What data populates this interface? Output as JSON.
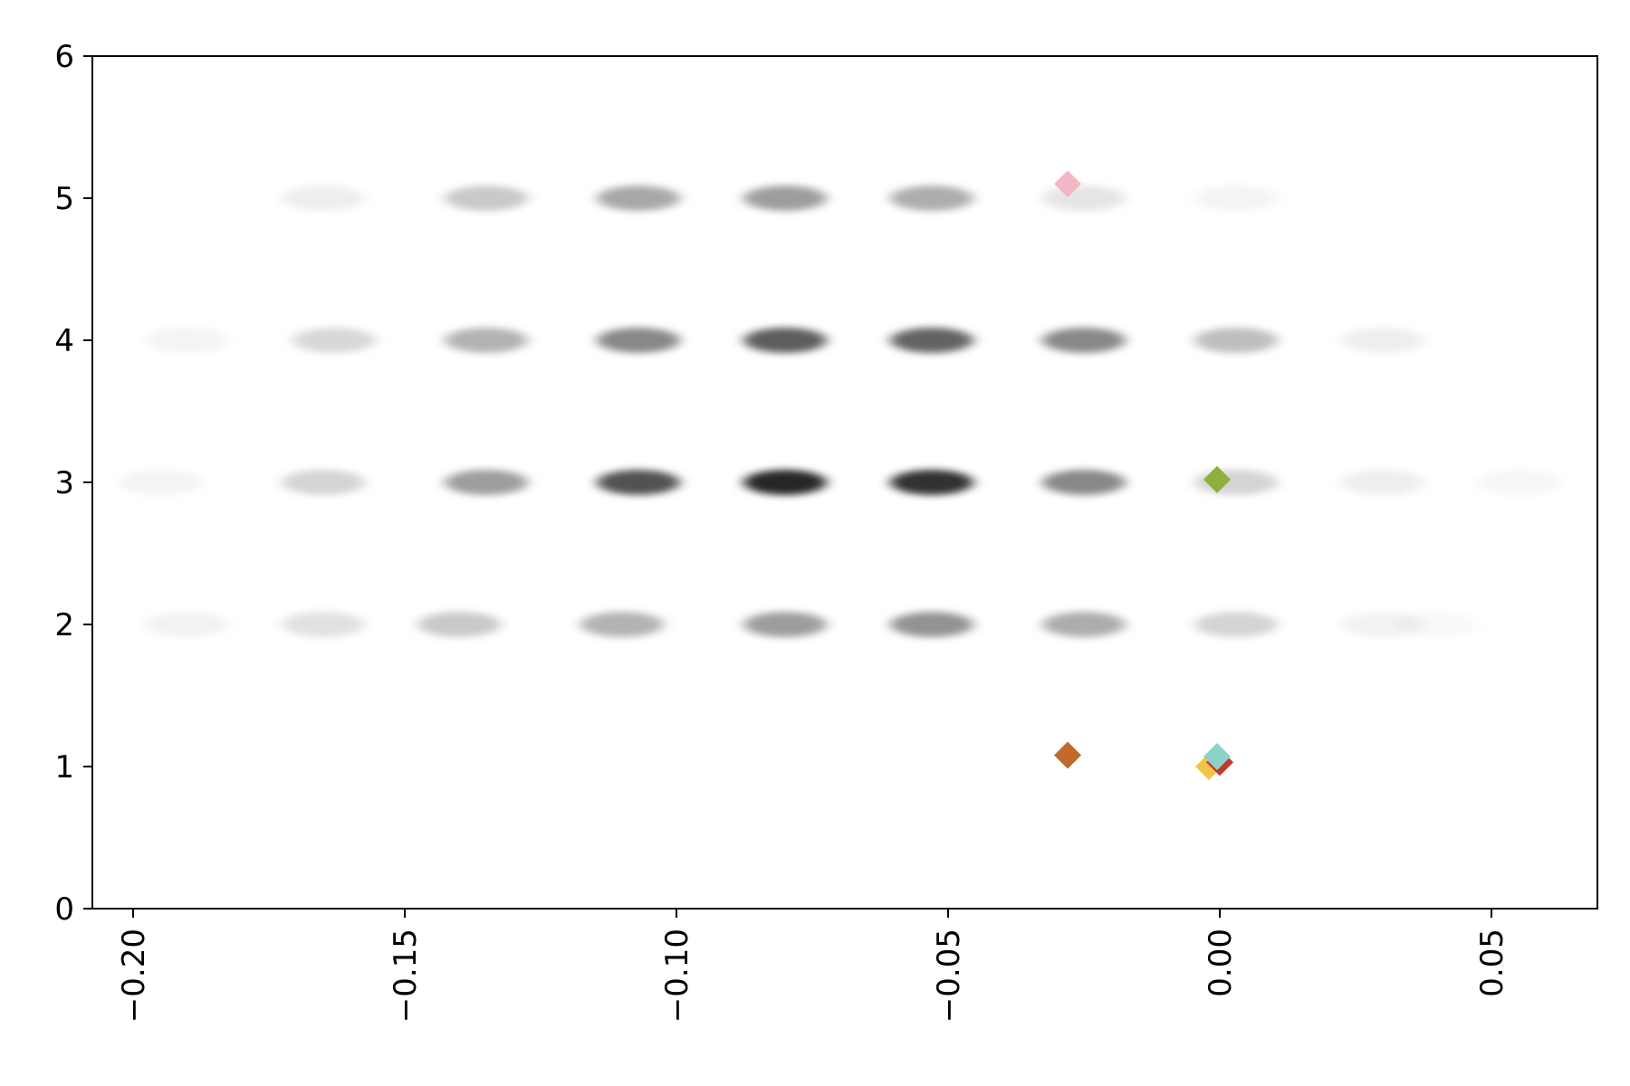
{
  "chart_data": {
    "type": "scatter",
    "title": "",
    "xlabel": "",
    "ylabel": "",
    "xlim": [
      -0.2075,
      0.0695
    ],
    "ylim": [
      0,
      6
    ],
    "x_ticks": [
      -0.2,
      -0.15,
      -0.1,
      -0.05,
      0.0,
      0.05
    ],
    "x_tick_labels": [
      "−0.20",
      "−0.15",
      "−0.10",
      "−0.05",
      "0.00",
      "0.05"
    ],
    "y_ticks": [
      0,
      1,
      2,
      3,
      4,
      5,
      6
    ],
    "y_tick_labels": [
      "0",
      "1",
      "2",
      "3",
      "4",
      "5",
      "6"
    ],
    "x_tick_rotation": 90,
    "grid": false,
    "legend": "none",
    "background_clusters": {
      "color": "#000000",
      "description_rows": [
        {
          "y": 2,
          "x": [
            -0.19,
            -0.165,
            -0.14,
            -0.11,
            -0.08,
            -0.053,
            -0.025,
            0.003,
            0.03,
            0.04
          ],
          "density": [
            0.06,
            0.14,
            0.25,
            0.35,
            0.45,
            0.5,
            0.38,
            0.2,
            0.06,
            0.03
          ]
        },
        {
          "y": 3,
          "x": [
            -0.195,
            -0.165,
            -0.135,
            -0.107,
            -0.08,
            -0.053,
            -0.025,
            0.003,
            0.03,
            0.055
          ],
          "density": [
            0.05,
            0.2,
            0.45,
            0.8,
            1.0,
            0.95,
            0.55,
            0.2,
            0.08,
            0.04
          ]
        },
        {
          "y": 4,
          "x": [
            -0.19,
            -0.163,
            -0.135,
            -0.107,
            -0.08,
            -0.053,
            -0.025,
            0.003,
            0.03
          ],
          "density": [
            0.05,
            0.18,
            0.35,
            0.55,
            0.75,
            0.72,
            0.55,
            0.3,
            0.08
          ]
        },
        {
          "y": 5,
          "x": [
            -0.165,
            -0.135,
            -0.107,
            -0.08,
            -0.053,
            -0.025,
            0.003
          ],
          "density": [
            0.08,
            0.25,
            0.4,
            0.45,
            0.38,
            0.12,
            0.05
          ]
        }
      ]
    },
    "series": [
      {
        "color": "#f4b8c4",
        "points": [
          [
            -0.028,
            5.1
          ]
        ]
      },
      {
        "color": "#8fae3c",
        "points": [
          [
            -0.0005,
            3.02
          ]
        ]
      },
      {
        "color": "#c0692a",
        "points": [
          [
            -0.028,
            1.08
          ]
        ]
      },
      {
        "color": "#f3c44b",
        "points": [
          [
            -0.002,
            1.0
          ]
        ]
      },
      {
        "color": "#c0392b",
        "points": [
          [
            0.0,
            1.03
          ]
        ]
      },
      {
        "color": "#8ed1c8",
        "points": [
          [
            -0.0005,
            1.07
          ]
        ]
      }
    ]
  }
}
